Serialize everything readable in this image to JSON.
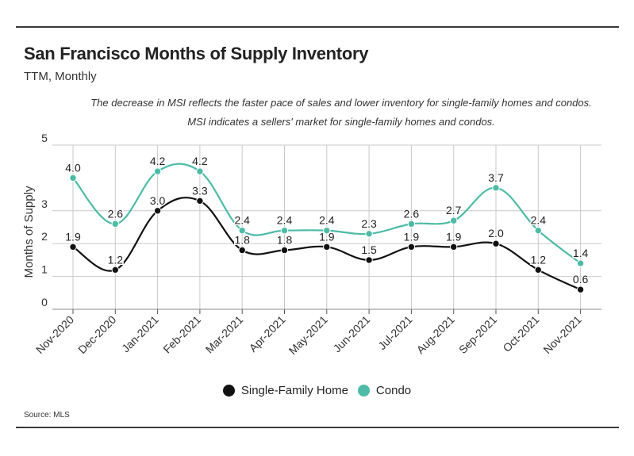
{
  "header": {
    "title": "San Francisco Months of Supply Inventory",
    "subtitle": "TTM, Monthly",
    "note_line1": "The decrease in MSI reflects the faster pace of sales and lower inventory for single-family homes and condos.",
    "note_line2": "MSI indicates a sellers' market for single-family homes and condos."
  },
  "footer": {
    "source": "Source:  MLS"
  },
  "chart_data": {
    "type": "line",
    "title": "San Francisco Months of Supply Inventory",
    "subtitle": "TTM, Monthly",
    "xlabel": "",
    "ylabel": "Months of Supply",
    "ylim": [
      0,
      5
    ],
    "yticks": [
      "0",
      "1",
      "2",
      "3",
      "5"
    ],
    "categories": [
      "Nov-2020",
      "Dec-2020",
      "Jan-2021",
      "Feb-2021",
      "Mar-2021",
      "Apr-2021",
      "May-2021",
      "Jun-2021",
      "Jul-2021",
      "Aug-2021",
      "Sep-2021",
      "Oct-2021",
      "Nov-2021"
    ],
    "grid": true,
    "legend_position": "bottom",
    "series": [
      {
        "name": "Single-Family Home",
        "color": "#111111",
        "values": [
          1.9,
          1.2,
          3.0,
          3.3,
          1.8,
          1.8,
          1.9,
          1.5,
          1.9,
          1.9,
          2.0,
          1.2,
          0.6
        ],
        "labels": [
          "1.9",
          "1.2",
          "3.0",
          "3.3",
          "1.8",
          "1.8",
          "1.9",
          "1.5",
          "1.9",
          "1.9",
          "2.0",
          "1.2",
          "0.6"
        ]
      },
      {
        "name": "Condo",
        "color": "#4dbba6",
        "values": [
          4.0,
          2.6,
          4.2,
          4.2,
          2.4,
          2.4,
          2.4,
          2.3,
          2.6,
          2.7,
          3.7,
          2.4,
          1.4
        ],
        "labels": [
          "4.0",
          "2.6",
          "4.2",
          "4.2",
          "2.4",
          "2.4",
          "2.4",
          "2.3",
          "2.6",
          "2.7",
          "3.7",
          "2.4",
          "1.4"
        ]
      }
    ]
  }
}
